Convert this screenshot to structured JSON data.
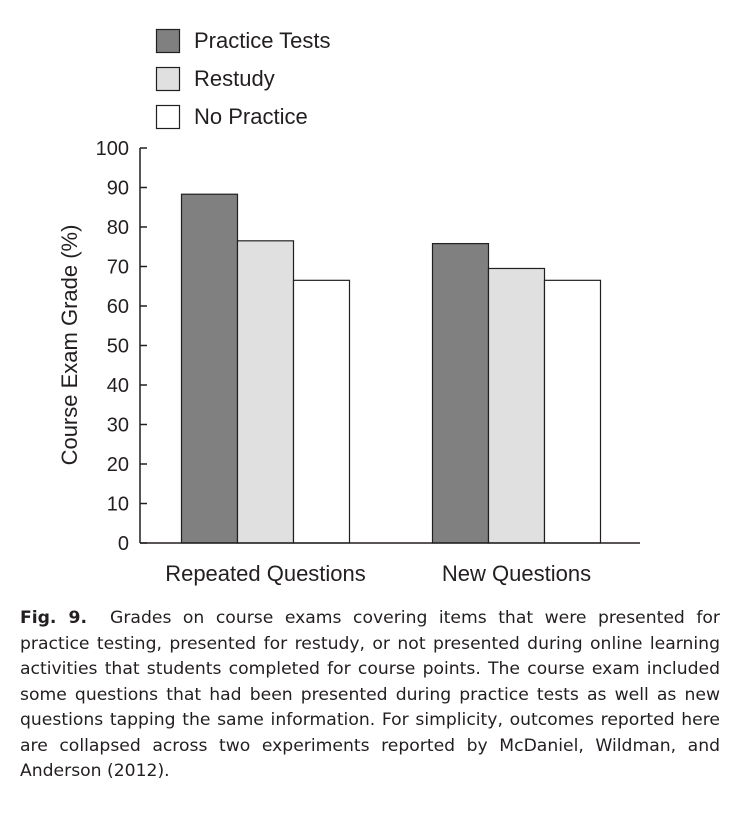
{
  "chart_data": {
    "type": "bar",
    "categories": [
      "Repeated Questions",
      "New Questions"
    ],
    "series": [
      {
        "name": "Practice Tests",
        "values": [
          88.3,
          75.8
        ],
        "color": "#808080"
      },
      {
        "name": "Restudy",
        "values": [
          76.5,
          69.5
        ],
        "color": "#e0e0e0"
      },
      {
        "name": "No Practice",
        "values": [
          66.5,
          66.5
        ],
        "color": "#ffffff"
      }
    ],
    "title": "",
    "xlabel": "",
    "ylabel": "Course Exam Grade (%)",
    "ylim": [
      0,
      100
    ],
    "yticks": [
      0,
      10,
      20,
      30,
      40,
      50,
      60,
      70,
      80,
      90,
      100
    ],
    "legend_position": "top-left",
    "grid": false
  },
  "caption": {
    "label": "Fig. 9.",
    "text": "Grades on course exams covering items that were presented for practice testing, presented for restudy, or not presented during online learning activities that students completed for course points. The course exam included some questions that had been presented during practice tests as well as new questions tapping the same information. For simplicity, outcomes reported here are collapsed across two experiments reported by McDaniel, Wildman, and Anderson (2012)."
  }
}
